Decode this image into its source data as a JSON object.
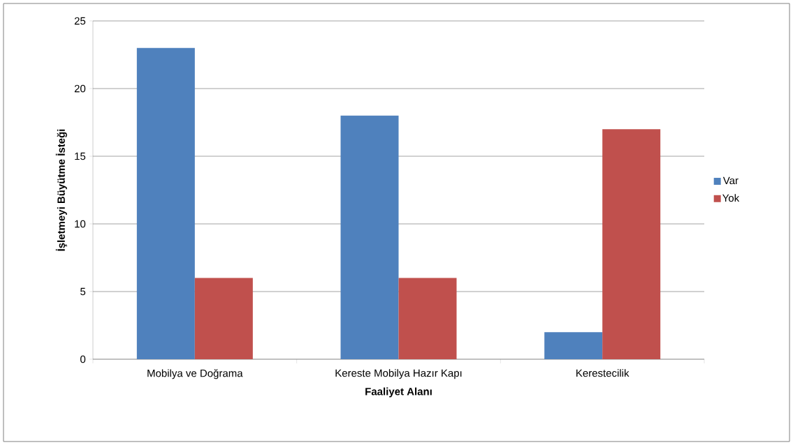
{
  "chart_data": {
    "type": "bar",
    "xlabel": "Faaliyet Alanı",
    "ylabel": "İşletmeyi Büyütme İsteği",
    "categories": [
      "Mobilya ve Doğrama",
      "Kereste Mobilya Hazır Kapı",
      "Kerestecilik"
    ],
    "series": [
      {
        "name": "Var",
        "color": "#4f81bd",
        "values": [
          23,
          18,
          2
        ]
      },
      {
        "name": "Yok",
        "color": "#c0504d",
        "values": [
          6,
          6,
          17
        ]
      }
    ],
    "ylim": [
      0,
      25
    ],
    "yticks": [
      0,
      5,
      10,
      15,
      20,
      25
    ],
    "grid": "y",
    "legend": "right"
  }
}
